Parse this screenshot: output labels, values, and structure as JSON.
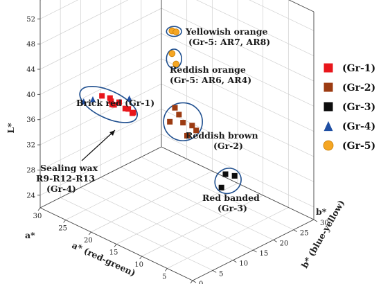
{
  "chart_data": {
    "type": "scatter",
    "dimensions": 3,
    "title": "",
    "axes": {
      "z": {
        "label": "L*",
        "ticks": [
          "24",
          "28",
          "32",
          "36",
          "40",
          "44",
          "48",
          "52"
        ],
        "range": [
          22,
          55
        ]
      },
      "a": {
        "label": "a* (red-green)",
        "ticks": [
          "30",
          "25",
          "20",
          "15",
          "10",
          "5",
          "0"
        ],
        "range": [
          0,
          30
        ]
      },
      "b": {
        "label": "b* (blue-yellow)",
        "ticks": [
          "0",
          "5",
          "10",
          "15",
          "20",
          "25",
          "30"
        ],
        "range": [
          0,
          30
        ]
      }
    },
    "corner_labels": {
      "a": {
        "text": "a*",
        "color": "#e8281e"
      },
      "b": {
        "text": "b*",
        "color": "#e8a21a"
      }
    },
    "legend": {
      "placement": "right",
      "entries": [
        {
          "label": "(Gr-1)",
          "shape": "square",
          "color": "#e8161b"
        },
        {
          "label": "(Gr-2)",
          "shape": "square",
          "color": "#9c3b12"
        },
        {
          "label": "(Gr-3)",
          "shape": "square",
          "color": "#0d0d0d"
        },
        {
          "label": "(Gr-4)",
          "shape": "triangle",
          "color": "#1f4fa3"
        },
        {
          "label": "(Gr-5)",
          "shape": "circle",
          "color": "#f5a623"
        }
      ]
    },
    "annotations": [
      {
        "lines": [
          "Yellowish orange",
          "(Gr-5: AR7, AR8)"
        ]
      },
      {
        "lines": [
          "Reddish orange",
          "(Gr-5: AR6, AR4)"
        ]
      },
      {
        "lines": [
          "Brick red (Gr-1)"
        ]
      },
      {
        "lines": [
          "Reddish brown",
          "(Gr-2)"
        ]
      },
      {
        "lines": [
          "Sealing wax",
          "R9-R12-R13",
          "(Gr-4)"
        ]
      },
      {
        "lines": [
          "Red banded",
          "(Gr-3)"
        ]
      }
    ],
    "series": [
      {
        "name": "(Gr-1)",
        "shape": "square",
        "color": "#e8161b",
        "points": [
          {
            "L": 38.8,
            "a": 25,
            "b": 9
          },
          {
            "L": 38.0,
            "a": 24,
            "b": 10
          },
          {
            "L": 37.8,
            "a": 25,
            "b": 11
          },
          {
            "L": 38.2,
            "a": 23,
            "b": 9
          },
          {
            "L": 37.2,
            "a": 24,
            "b": 12
          },
          {
            "L": 36.4,
            "a": 25,
            "b": 12
          },
          {
            "L": 37.3,
            "a": 22,
            "b": 11
          },
          {
            "L": 36.2,
            "a": 23,
            "b": 13
          },
          {
            "L": 36.0,
            "a": 22,
            "b": 13
          },
          {
            "L": 35.2,
            "a": 23,
            "b": 14
          }
        ]
      },
      {
        "name": "(Gr-2)",
        "shape": "square",
        "color": "#9c3b12",
        "points": [
          {
            "L": 37.4,
            "a": 17,
            "b": 17
          },
          {
            "L": 36.0,
            "a": 17,
            "b": 18
          },
          {
            "L": 34.8,
            "a": 18,
            "b": 17
          },
          {
            "L": 34.4,
            "a": 17,
            "b": 19
          },
          {
            "L": 34.0,
            "a": 16,
            "b": 20
          },
          {
            "L": 32.9,
            "a": 16,
            "b": 21
          },
          {
            "L": 32.0,
            "a": 17,
            "b": 20
          }
        ]
      },
      {
        "name": "(Gr-3)",
        "shape": "square",
        "color": "#0d0d0d",
        "points": [
          {
            "L": 24.4,
            "a": 15,
            "b": 27
          },
          {
            "L": 24.2,
            "a": 14,
            "b": 28
          },
          {
            "L": 22.6,
            "a": 15,
            "b": 26
          }
        ]
      },
      {
        "name": "(Gr-4)",
        "shape": "triangle",
        "color": "#1f4fa3",
        "points": [
          {
            "L": 38.6,
            "a": 22,
            "b": 12
          },
          {
            "L": 37.8,
            "a": 27,
            "b": 7
          },
          {
            "L": 38.2,
            "a": 26,
            "b": 8
          }
        ]
      },
      {
        "name": "(Gr-5)",
        "shape": "circle",
        "color": "#f5a623",
        "points": [
          {
            "L": 53.8,
            "a": 12,
            "b": 10
          },
          {
            "L": 53.3,
            "a": 12,
            "b": 11
          },
          {
            "L": 50.2,
            "a": 12,
            "b": 10
          },
          {
            "L": 48.2,
            "a": 12,
            "b": 11
          }
        ]
      }
    ]
  }
}
